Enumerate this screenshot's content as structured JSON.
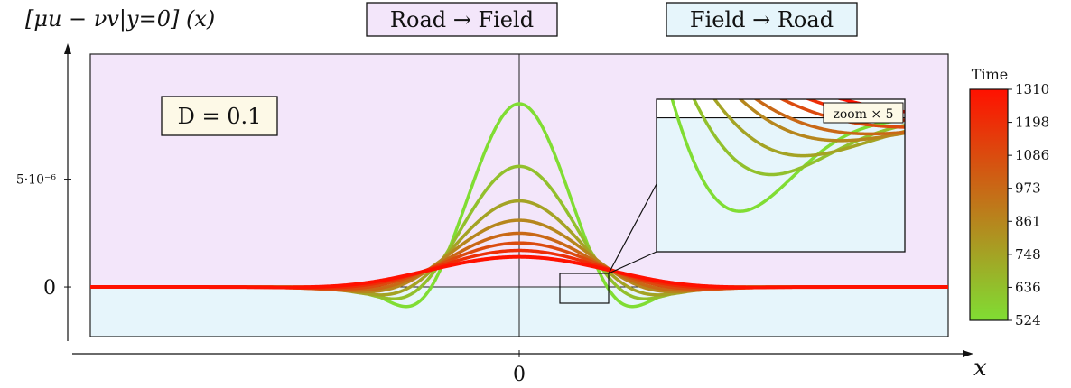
{
  "chart_data": {
    "type": "line",
    "title": "",
    "ylabel": "[μu − νv|y=0] (x)",
    "xlabel": "x",
    "x_ticks": [
      {
        "value": 0,
        "label": "0"
      }
    ],
    "y_ticks": [
      {
        "value": 0,
        "label": "0"
      },
      {
        "value": 5e-06,
        "label": "5·10⁻⁶"
      }
    ],
    "xlim": [
      -10,
      10
    ],
    "ylim": [
      -2.3e-06,
      1.08e-05
    ],
    "region_labels": {
      "upper": "Road → Field",
      "lower": "Field → Road"
    },
    "annotation": "D = 0.1",
    "inset": {
      "label": "zoom × 5",
      "x_range": [
        1.85,
        4.2
      ],
      "y_range": [
        -1.3e-06,
        1.8e-07
      ]
    },
    "colorbar": {
      "title": "Time",
      "ticks": [
        "1310",
        "1198",
        "1086",
        "973",
        "861",
        "748",
        "636",
        "524"
      ],
      "min": 524,
      "max": 1310,
      "color_low": "#80dd33",
      "color_high": "#ff1100"
    },
    "colors": {
      "upper_region": "#f3e6fa",
      "lower_region": "#e6f5fb",
      "annotation_bg": "#fdf9e7"
    },
    "series": [
      {
        "time": 524,
        "amplitude": 8.5e-06,
        "width": 1.05,
        "dip": 1.4e-06,
        "dip_center": 2.35,
        "dip_width": 0.65
      },
      {
        "time": 636,
        "amplitude": 5.6e-06,
        "width": 1.2,
        "dip": 9.5e-07,
        "dip_center": 2.55,
        "dip_width": 0.75
      },
      {
        "time": 748,
        "amplitude": 4e-06,
        "width": 1.35,
        "dip": 7e-07,
        "dip_center": 2.75,
        "dip_width": 0.85
      },
      {
        "time": 861,
        "amplitude": 3.1e-06,
        "width": 1.5,
        "dip": 5e-07,
        "dip_center": 2.95,
        "dip_width": 0.95
      },
      {
        "time": 973,
        "amplitude": 2.5e-06,
        "width": 1.6,
        "dip": 3.8e-07,
        "dip_center": 3.1,
        "dip_width": 1.05
      },
      {
        "time": 1086,
        "amplitude": 2.05e-06,
        "width": 1.75,
        "dip": 2.8e-07,
        "dip_center": 3.3,
        "dip_width": 1.15
      },
      {
        "time": 1198,
        "amplitude": 1.7e-06,
        "width": 1.9,
        "dip": 2e-07,
        "dip_center": 3.5,
        "dip_width": 1.25
      },
      {
        "time": 1310,
        "amplitude": 1.4e-06,
        "width": 2.1,
        "dip": 1.4e-07,
        "dip_center": 3.7,
        "dip_width": 1.35
      }
    ]
  }
}
